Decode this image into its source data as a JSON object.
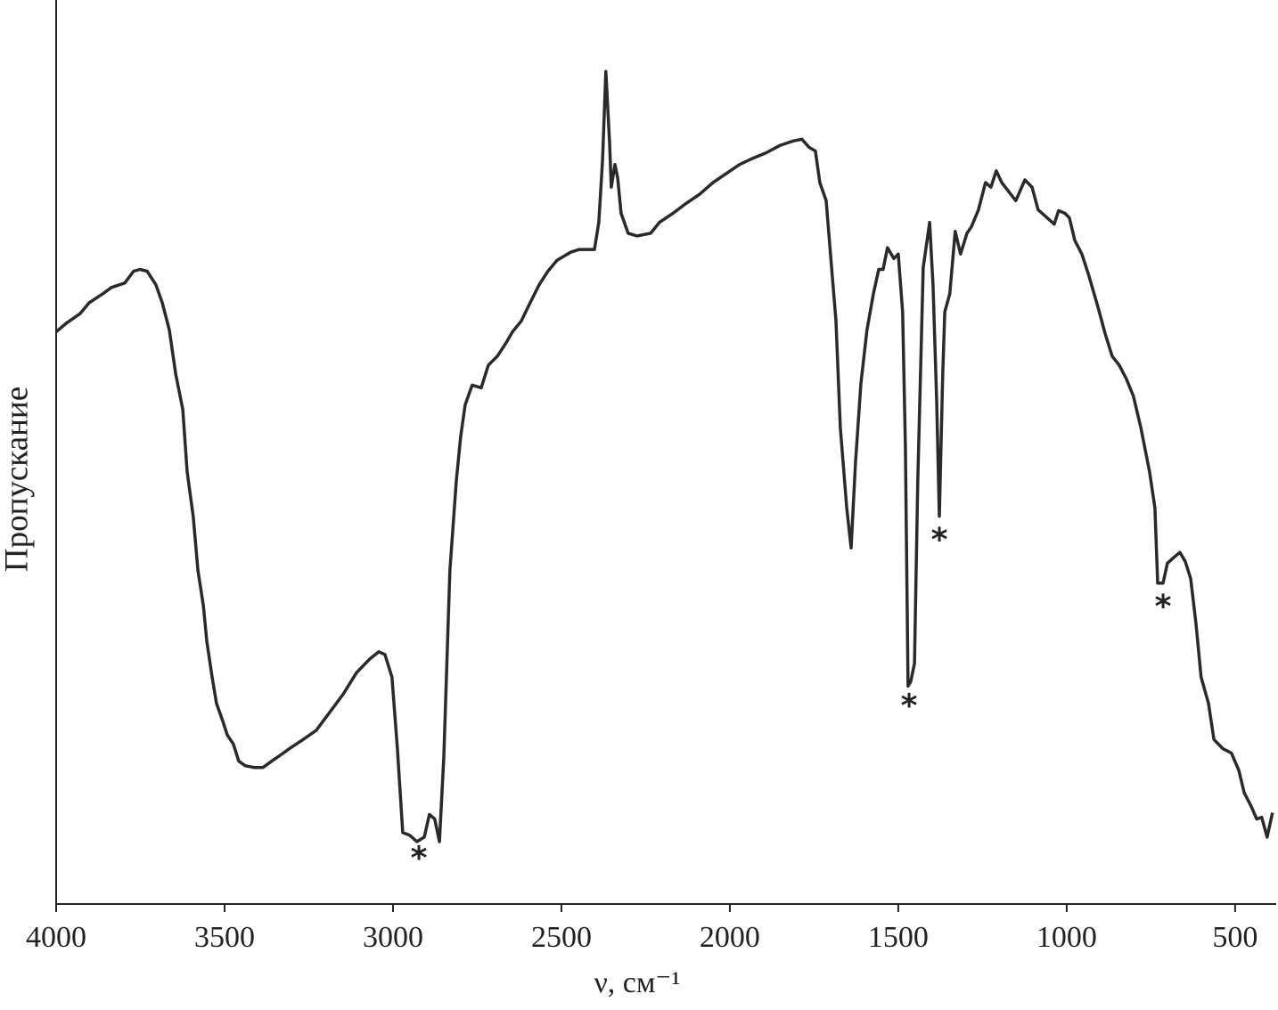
{
  "chart_data": {
    "type": "line",
    "x_label": "ν, см⁻¹",
    "y_label": "Пропускание",
    "xlim": [
      4000,
      378
    ],
    "ylim": [
      0,
      100
    ],
    "xticks": [
      4000,
      3500,
      3000,
      2500,
      2000,
      1500,
      1000,
      500
    ],
    "color": "#2a2a2a",
    "x": [
      4000,
      3968,
      3929,
      3902,
      3862,
      3836,
      3796,
      3770,
      3751,
      3730,
      3704,
      3685,
      3664,
      3645,
      3624,
      3611,
      3593,
      3579,
      3563,
      3553,
      3537,
      3524,
      3505,
      3492,
      3474,
      3458,
      3439,
      3413,
      3386,
      3360,
      3333,
      3307,
      3267,
      3228,
      3188,
      3148,
      3108,
      3069,
      3042,
      3024,
      3003,
      2987,
      2971,
      2950,
      2929,
      2907,
      2892,
      2876,
      2862,
      2849,
      2831,
      2812,
      2799,
      2786,
      2765,
      2738,
      2717,
      2690,
      2664,
      2645,
      2619,
      2593,
      2566,
      2540,
      2513,
      2473,
      2447,
      2402,
      2389,
      2378,
      2368,
      2357,
      2352,
      2341,
      2333,
      2323,
      2302,
      2275,
      2235,
      2209,
      2169,
      2130,
      2090,
      2050,
      2011,
      1971,
      1931,
      1892,
      1852,
      1812,
      1786,
      1765,
      1746,
      1733,
      1714,
      1698,
      1685,
      1672,
      1653,
      1640,
      1627,
      1611,
      1593,
      1574,
      1558,
      1545,
      1532,
      1513,
      1500,
      1487,
      1479,
      1471,
      1463,
      1452,
      1442,
      1426,
      1407,
      1397,
      1386,
      1378,
      1368,
      1362,
      1347,
      1331,
      1315,
      1296,
      1283,
      1262,
      1241,
      1225,
      1209,
      1193,
      1172,
      1151,
      1124,
      1103,
      1085,
      1058,
      1037,
      1024,
      1005,
      992,
      976,
      955,
      934,
      907,
      886,
      865,
      844,
      823,
      802,
      780,
      754,
      738,
      730,
      714,
      701,
      680,
      664,
      648,
      632,
      616,
      601,
      579,
      563,
      537,
      511,
      489,
      473,
      452,
      436,
      421,
      405,
      389
    ],
    "values": [
      63.3,
      64.3,
      65.3,
      66.5,
      67.5,
      68.2,
      68.7,
      70.0,
      70.2,
      70.0,
      68.5,
      66.5,
      63.5,
      58.6,
      54.7,
      47.8,
      42.9,
      36.9,
      33.0,
      29.1,
      25.1,
      22.2,
      20.2,
      18.7,
      17.7,
      15.8,
      15.3,
      15.1,
      15.1,
      15.8,
      16.5,
      17.2,
      18.2,
      19.2,
      21.2,
      23.2,
      25.6,
      27.1,
      27.9,
      27.6,
      25.1,
      17.2,
      7.9,
      7.6,
      6.9,
      7.4,
      9.9,
      9.4,
      6.9,
      16.3,
      36.9,
      46.8,
      51.7,
      55.2,
      57.4,
      57.1,
      59.6,
      60.6,
      62.1,
      63.3,
      64.5,
      66.5,
      68.5,
      70.0,
      71.2,
      72.1,
      72.4,
      72.4,
      75.4,
      82.3,
      92.1,
      84.2,
      79.3,
      81.8,
      80.3,
      76.4,
      74.2,
      73.9,
      74.2,
      75.4,
      76.4,
      77.5,
      78.5,
      79.8,
      80.8,
      81.8,
      82.5,
      83.1,
      83.9,
      84.4,
      84.6,
      83.7,
      83.3,
      79.8,
      77.8,
      70.4,
      64.5,
      52.7,
      43.8,
      39.4,
      48.8,
      57.6,
      63.5,
      67.5,
      70.2,
      70.2,
      72.6,
      71.4,
      71.9,
      65.5,
      50.7,
      24.1,
      24.6,
      26.6,
      46.8,
      70.4,
      75.4,
      68.5,
      55.7,
      42.9,
      58.6,
      65.5,
      67.5,
      74.4,
      71.9,
      74.2,
      74.9,
      76.8,
      79.8,
      79.3,
      81.1,
      79.8,
      78.8,
      77.8,
      80.1,
      79.3,
      76.8,
      75.9,
      75.2,
      76.7,
      76.4,
      75.9,
      73.4,
      71.9,
      69.5,
      66.0,
      63.1,
      60.6,
      59.6,
      58.1,
      56.2,
      52.7,
      47.8,
      43.8,
      35.5,
      35.5,
      37.7,
      38.4,
      38.9,
      37.9,
      36.0,
      31.0,
      25.1,
      22.2,
      18.2,
      17.2,
      16.7,
      14.8,
      12.3,
      10.8,
      9.4,
      9.6,
      7.4,
      10.1
    ],
    "annotations": [
      {
        "text": "*",
        "x": 2923,
        "y": 4.9
      },
      {
        "text": "*",
        "x": 1468,
        "y": 21.7
      },
      {
        "text": "*",
        "x": 1378,
        "y": 40.1
      },
      {
        "text": "*",
        "x": 714,
        "y": 32.7
      }
    ]
  }
}
